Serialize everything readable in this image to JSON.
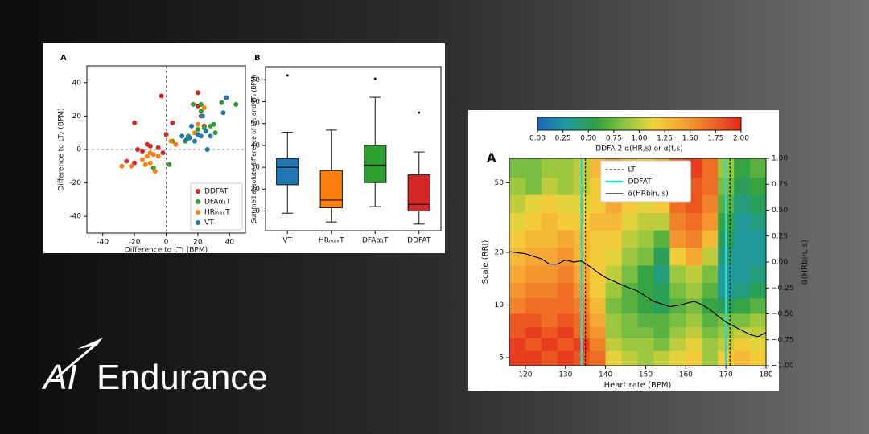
{
  "brand": {
    "mark": "AI",
    "name": "Endurance"
  },
  "chart_data": [
    {
      "type": "scatter",
      "panel_label": "A",
      "xlabel": "Difference to LT₁ (BPM)",
      "ylabel": "Difference to LT₂ (BPM)",
      "xlim": [
        -50,
        50
      ],
      "ylim": [
        -50,
        50
      ],
      "xticks": [
        -40,
        -20,
        0,
        20,
        40
      ],
      "yticks": [
        -40,
        -20,
        0,
        20,
        40
      ],
      "zero_lines": true,
      "legend": "lower right",
      "series": [
        {
          "name": "DDFAT",
          "color": "#d62728",
          "x": [
            -3,
            -20,
            4,
            -18,
            -12,
            -10,
            -5,
            0,
            -2,
            -25,
            -20,
            20,
            20,
            22,
            24,
            -15
          ],
          "values": [
            32,
            16,
            16,
            0,
            3,
            2,
            1,
            9,
            -2,
            -7,
            -8,
            34,
            26,
            20,
            14,
            -1
          ]
        },
        {
          "name": "DFAα₁T",
          "color": "#2ca02c",
          "x": [
            22,
            22,
            17,
            28,
            20,
            24,
            30,
            35,
            44,
            31,
            14,
            -8,
            2,
            4,
            12
          ],
          "values": [
            23,
            27,
            27,
            14,
            12,
            13,
            15,
            28,
            27,
            10,
            8,
            -11,
            -9,
            5,
            5
          ]
        },
        {
          "name": "HRₘₐₓT",
          "color": "#ff7f0e",
          "x": [
            -28,
            -22,
            -15,
            -12,
            -10,
            -8,
            -5,
            -10,
            -7,
            3,
            6,
            24,
            20,
            18,
            -13
          ],
          "values": [
            -10,
            -10,
            -6,
            -4,
            -2,
            -3,
            -4,
            -8,
            -13,
            5,
            3,
            25,
            15,
            10,
            -9
          ]
        },
        {
          "name": "VT",
          "color": "#1f77b4",
          "x": [
            22,
            25,
            20,
            15,
            18,
            10,
            13,
            26,
            23,
            38,
            36,
            16,
            28
          ],
          "values": [
            8,
            11,
            9,
            7,
            5,
            8,
            6,
            0,
            20,
            31,
            22,
            14,
            8
          ]
        }
      ]
    },
    {
      "type": "box",
      "panel_label": "B",
      "ylabel": "Summed absolute difference of LT₁ and LT₂ (BPM)",
      "ylim": [
        1,
        76
      ],
      "yticks": [
        10,
        20,
        30,
        40,
        50,
        60,
        70
      ],
      "categories": [
        "VT",
        "HRₘₐₓT",
        "DFAα₁T",
        "DDFAT"
      ],
      "colors": [
        "#1f77b4",
        "#ff7f0e",
        "#2ca02c",
        "#d62728"
      ],
      "boxes": [
        {
          "min": 9,
          "q1": 22,
          "median": 30,
          "q3": 34,
          "max": 46,
          "outliers": [
            72
          ]
        },
        {
          "min": 5,
          "q1": 11.5,
          "median": 15,
          "q3": 28.5,
          "max": 47
        },
        {
          "min": 12,
          "q1": 23,
          "median": 31,
          "q3": 40,
          "max": 62,
          "outliers": [
            70.5
          ]
        },
        {
          "min": 4,
          "q1": 10,
          "median": 13,
          "q3": 26.5,
          "max": 37,
          "outliers": [
            55
          ]
        }
      ]
    },
    {
      "type": "heatmap",
      "panel_label": "A",
      "xlabel": "Heart rate (BPM)",
      "ylabel": "Scale (RRI)",
      "y2label": "α̃(HRbin, s)",
      "xlim": [
        116,
        180
      ],
      "xticks": [
        120,
        130,
        140,
        150,
        160,
        170,
        180
      ],
      "ylim": [
        4.5,
        69
      ],
      "ylog": true,
      "yticks": [
        5,
        10,
        20,
        50
      ],
      "y2lim": [
        -1,
        1
      ],
      "y2ticks": [
        {
          "value": -1,
          "label": "−1.00"
        },
        {
          "value": -0.75,
          "label": "−0.75"
        },
        {
          "value": -0.5,
          "label": "−0.50"
        },
        {
          "value": -0.25,
          "label": "−0.25"
        },
        {
          "value": 0,
          "label": "0.00"
        },
        {
          "value": 0.25,
          "label": "0.25"
        },
        {
          "value": 0.5,
          "label": "0.50"
        },
        {
          "value": 0.75,
          "label": "0.75"
        },
        {
          "value": 1,
          "label": "1.00"
        }
      ],
      "colorbar": {
        "label": "DDFA-2 α(HR,s) or α(t,s)",
        "clim": [
          0,
          2
        ],
        "ticks": [
          {
            "value": 0,
            "label": "0.00"
          },
          {
            "value": 0.25,
            "label": "0.25"
          },
          {
            "value": 0.5,
            "label": "0.50"
          },
          {
            "value": 0.75,
            "label": "0.75"
          },
          {
            "value": 1,
            "label": "1.00"
          },
          {
            "value": 1.25,
            "label": "1.25"
          },
          {
            "value": 1.5,
            "label": "1.50"
          },
          {
            "value": 1.75,
            "label": "1.75"
          },
          {
            "value": 2,
            "label": "2.00"
          }
        ],
        "colormap": [
          "#1d66b8",
          "#1f9aa0",
          "#2ea043",
          "#8cc63f",
          "#f2d43a",
          "#f5a332",
          "#ef6a24",
          "#e5261b"
        ]
      },
      "x": [
        118,
        122,
        126,
        130,
        134,
        138,
        142,
        146,
        150,
        154,
        158,
        162,
        166,
        170,
        174,
        178
      ],
      "y": [
        5,
        6,
        7,
        8,
        10,
        12,
        15,
        19,
        24,
        30,
        38,
        48,
        60
      ],
      "values": [
        [
          1.9,
          1.9,
          1.8,
          1.9,
          1.8,
          1.7,
          1.1,
          1.0,
          0.9,
          1.0,
          1.1,
          1.2,
          0.9,
          1.2,
          1.3,
          1.2
        ],
        [
          1.9,
          1.8,
          1.9,
          1.8,
          1.9,
          1.6,
          1.0,
          0.9,
          0.9,
          0.8,
          1.0,
          1.1,
          0.9,
          1.0,
          1.2,
          1.1
        ],
        [
          1.8,
          1.9,
          1.8,
          1.9,
          1.7,
          1.5,
          0.9,
          0.8,
          0.8,
          0.7,
          0.9,
          1.0,
          0.8,
          0.9,
          1.0,
          1.0
        ],
        [
          1.8,
          1.8,
          1.7,
          1.8,
          1.7,
          1.4,
          0.9,
          0.8,
          0.7,
          0.7,
          0.8,
          0.9,
          0.7,
          0.8,
          0.8,
          0.9
        ],
        [
          1.6,
          1.7,
          1.7,
          1.7,
          1.6,
          1.3,
          0.8,
          0.7,
          0.6,
          0.5,
          0.7,
          0.8,
          0.6,
          0.5,
          0.6,
          0.7
        ],
        [
          1.5,
          1.6,
          1.6,
          1.7,
          1.5,
          1.2,
          0.9,
          0.7,
          0.6,
          0.5,
          0.8,
          0.9,
          0.7,
          0.3,
          0.4,
          0.5
        ],
        [
          1.4,
          1.5,
          1.5,
          1.6,
          1.4,
          1.2,
          1.0,
          0.8,
          0.6,
          0.4,
          0.9,
          1.0,
          0.8,
          0.3,
          0.3,
          0.4
        ],
        [
          1.3,
          1.4,
          1.4,
          1.5,
          1.3,
          1.2,
          1.1,
          0.9,
          0.8,
          0.5,
          1.2,
          1.4,
          1.0,
          0.4,
          0.3,
          0.3
        ],
        [
          1.2,
          1.3,
          1.3,
          1.4,
          1.3,
          1.2,
          1.2,
          1.0,
          0.9,
          0.7,
          1.5,
          1.6,
          1.3,
          0.5,
          0.3,
          0.3
        ],
        [
          1.1,
          1.2,
          1.3,
          1.2,
          1.2,
          1.3,
          1.3,
          1.1,
          1.0,
          1.0,
          1.6,
          1.7,
          1.5,
          0.6,
          0.3,
          0.4
        ],
        [
          1.0,
          1.1,
          1.2,
          1.1,
          1.1,
          1.2,
          1.4,
          1.2,
          1.1,
          1.2,
          1.7,
          1.8,
          1.6,
          0.7,
          0.4,
          0.5
        ],
        [
          0.9,
          0.8,
          1.0,
          0.9,
          1.0,
          1.2,
          1.4,
          1.3,
          1.2,
          1.3,
          1.8,
          1.8,
          1.7,
          0.8,
          0.5,
          0.6
        ],
        [
          0.8,
          0.8,
          0.9,
          0.9,
          1.0,
          1.3,
          1.5,
          1.3,
          1.2,
          1.4,
          1.8,
          1.9,
          1.7,
          0.9,
          0.6,
          0.7
        ]
      ],
      "vlines": [
        {
          "name": "LT",
          "color": "#000000",
          "dashed": true,
          "x": [
            135,
            171
          ]
        },
        {
          "name": "DDFAT",
          "color": "#2ed8d0",
          "x": [
            134,
            170
          ]
        }
      ],
      "legend": "upper center",
      "series": [
        {
          "name": "α̃(HRbin, s)",
          "color": "#000000",
          "axis": "y2",
          "x": [
            116,
            120,
            124,
            126,
            128,
            130,
            132,
            134,
            136,
            138,
            140,
            144,
            148,
            152,
            156,
            158,
            160,
            162,
            164,
            166,
            168,
            170,
            172,
            174,
            176,
            178,
            180
          ],
          "values": [
            0.1,
            0.08,
            0.03,
            -0.02,
            -0.02,
            0.02,
            0.0,
            0.01,
            -0.04,
            -0.1,
            -0.15,
            -0.22,
            -0.28,
            -0.38,
            -0.43,
            -0.42,
            -0.4,
            -0.38,
            -0.41,
            -0.46,
            -0.52,
            -0.58,
            -0.62,
            -0.66,
            -0.7,
            -0.72,
            -0.68
          ]
        }
      ]
    }
  ]
}
